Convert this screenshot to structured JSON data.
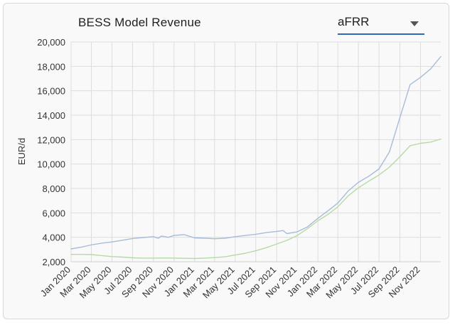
{
  "header": {
    "title": "BESS Model Revenue",
    "dropdown_value": "aFRR"
  },
  "colors": {
    "series_blue": "#a7bcd8",
    "series_green": "#b7d9a8",
    "grid": "#dddddd",
    "accent": "#2f67b9"
  },
  "icons": {
    "dropdown": "chevron-down-icon"
  },
  "chart_data": {
    "type": "line",
    "title": "BESS Model Revenue",
    "ylabel": "EUR/d",
    "xlabel": "",
    "ylim": [
      2000,
      20000
    ],
    "yticks": [
      2000,
      4000,
      6000,
      8000,
      10000,
      12000,
      14000,
      16000,
      18000,
      20000
    ],
    "ytick_labels": [
      "2,000",
      "4,000",
      "6,000",
      "8,000",
      "10,000",
      "12,000",
      "14,000",
      "16,000",
      "18,000",
      "20,000"
    ],
    "xlim": [
      "2020-01-01",
      "2022-12-31"
    ],
    "xticks": [
      "2020-01",
      "2020-03",
      "2020-05",
      "2020-07",
      "2020-09",
      "2020-11",
      "2021-01",
      "2021-03",
      "2021-05",
      "2021-07",
      "2021-09",
      "2021-11",
      "2022-01",
      "2022-03",
      "2022-05",
      "2022-07",
      "2022-09",
      "2022-11"
    ],
    "xtick_labels": [
      "Jan 2020",
      "Mar 2020",
      "May 2020",
      "Jul 2020",
      "Sep 2020",
      "Nov 2020",
      "Jan 2021",
      "Mar 2021",
      "May 2021",
      "Jul 2021",
      "Sep 2021",
      "Nov 2021",
      "Jan 2022",
      "Mar 2022",
      "May 2022",
      "Jul 2022",
      "Sep 2022",
      "Nov 2022"
    ],
    "grid": true,
    "series": [
      {
        "color": "#a7bcd8",
        "points": [
          [
            "2020-01-01",
            3050
          ],
          [
            "2020-02-01",
            3200
          ],
          [
            "2020-03-01",
            3380
          ],
          [
            "2020-04-01",
            3520
          ],
          [
            "2020-05-01",
            3620
          ],
          [
            "2020-06-01",
            3760
          ],
          [
            "2020-07-01",
            3900
          ],
          [
            "2020-08-01",
            3980
          ],
          [
            "2020-09-01",
            4050
          ],
          [
            "2020-09-15",
            3920
          ],
          [
            "2020-09-25",
            4100
          ],
          [
            "2020-10-15",
            4000
          ],
          [
            "2020-11-01",
            4150
          ],
          [
            "2020-12-01",
            4220
          ],
          [
            "2021-01-01",
            3950
          ],
          [
            "2021-02-01",
            3920
          ],
          [
            "2021-03-01",
            3880
          ],
          [
            "2021-04-01",
            3920
          ],
          [
            "2021-05-01",
            4050
          ],
          [
            "2021-06-01",
            4150
          ],
          [
            "2021-07-01",
            4250
          ],
          [
            "2021-08-01",
            4380
          ],
          [
            "2021-09-01",
            4480
          ],
          [
            "2021-09-20",
            4550
          ],
          [
            "2021-10-01",
            4300
          ],
          [
            "2021-11-01",
            4450
          ],
          [
            "2021-12-01",
            4850
          ],
          [
            "2022-01-01",
            5550
          ],
          [
            "2022-02-01",
            6200
          ],
          [
            "2022-03-01",
            6800
          ],
          [
            "2022-04-01",
            7800
          ],
          [
            "2022-05-01",
            8500
          ],
          [
            "2022-06-01",
            9000
          ],
          [
            "2022-07-01",
            9600
          ],
          [
            "2022-08-01",
            11000
          ],
          [
            "2022-09-01",
            13800
          ],
          [
            "2022-10-01",
            16500
          ],
          [
            "2022-11-01",
            17100
          ],
          [
            "2022-12-01",
            17800
          ],
          [
            "2022-12-31",
            18800
          ]
        ]
      },
      {
        "color": "#b7d9a8",
        "points": [
          [
            "2020-01-01",
            2600
          ],
          [
            "2020-02-01",
            2600
          ],
          [
            "2020-03-01",
            2580
          ],
          [
            "2020-04-01",
            2500
          ],
          [
            "2020-05-01",
            2420
          ],
          [
            "2020-06-01",
            2380
          ],
          [
            "2020-07-01",
            2320
          ],
          [
            "2020-08-01",
            2300
          ],
          [
            "2020-09-01",
            2300
          ],
          [
            "2020-10-01",
            2310
          ],
          [
            "2020-11-01",
            2300
          ],
          [
            "2020-12-01",
            2280
          ],
          [
            "2021-01-01",
            2260
          ],
          [
            "2021-02-01",
            2300
          ],
          [
            "2021-03-01",
            2340
          ],
          [
            "2021-04-01",
            2400
          ],
          [
            "2021-05-01",
            2550
          ],
          [
            "2021-06-01",
            2700
          ],
          [
            "2021-07-01",
            2900
          ],
          [
            "2021-08-01",
            3150
          ],
          [
            "2021-09-01",
            3450
          ],
          [
            "2021-10-01",
            3750
          ],
          [
            "2021-11-01",
            4150
          ],
          [
            "2021-12-01",
            4700
          ],
          [
            "2022-01-01",
            5350
          ],
          [
            "2022-02-01",
            5900
          ],
          [
            "2022-03-01",
            6500
          ],
          [
            "2022-04-01",
            7400
          ],
          [
            "2022-05-01",
            8050
          ],
          [
            "2022-06-01",
            8600
          ],
          [
            "2022-07-01",
            9100
          ],
          [
            "2022-08-01",
            9750
          ],
          [
            "2022-09-01",
            10600
          ],
          [
            "2022-10-01",
            11500
          ],
          [
            "2022-11-01",
            11700
          ],
          [
            "2022-12-01",
            11800
          ],
          [
            "2022-12-31",
            12050
          ]
        ]
      }
    ]
  }
}
